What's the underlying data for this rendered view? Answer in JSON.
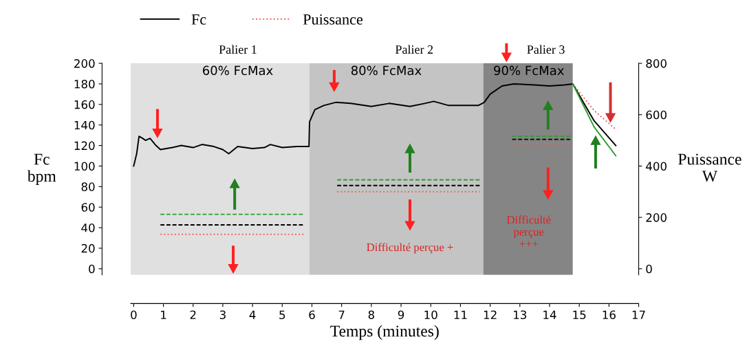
{
  "chart_data": {
    "type": "line",
    "xlabel": "Temps (minutes)",
    "ylabel": "Fc\nbpm",
    "y2label": "Puissance\nW",
    "xlim": [
      -0.1,
      17
    ],
    "xticks": [
      0,
      1,
      2,
      3,
      4,
      5,
      6,
      7,
      8,
      9,
      10,
      11,
      12,
      13,
      14,
      15,
      16,
      17
    ],
    "ylim": [
      -6,
      200
    ],
    "yticks": [
      0,
      20,
      40,
      60,
      80,
      100,
      120,
      140,
      160,
      180,
      200
    ],
    "y2lim": [
      -24,
      800
    ],
    "y2ticks": [
      0,
      200,
      400,
      600,
      800
    ],
    "grid": false,
    "legend": "top left",
    "marker": "none",
    "bands": [
      {
        "axis": "x",
        "from": -0.1,
        "to": 5.92,
        "label": "Palier 1",
        "color": "#e0e0e0"
      },
      {
        "axis": "x",
        "from": 5.92,
        "to": 11.77,
        "label": "Palier 2",
        "color": "#c4c4c4"
      },
      {
        "axis": "x",
        "from": 11.77,
        "to": 14.78,
        "label": "Palier 3",
        "color": "#858585"
      }
    ],
    "annotations": [
      "60% FcMax",
      "80% FcMax",
      "90% FcMax",
      "Difficulté perçue +",
      "Difficulté\nperçue\n+++"
    ],
    "series": [
      {
        "name": "Fc",
        "color": "#000000",
        "line_style": "solid",
        "axis": "y",
        "x": [
          0,
          0.1,
          0.18,
          0.3,
          0.4,
          0.55,
          0.75,
          0.9,
          1.3,
          1.6,
          2.0,
          2.3,
          2.7,
          3.0,
          3.2,
          3.5,
          4.0,
          4.4,
          4.6,
          5.0,
          5.5,
          5.9,
          5.92,
          6.1,
          6.4,
          6.8,
          7.3,
          8.0,
          8.6,
          9.3,
          9.8,
          10.1,
          10.6,
          11.2,
          11.6,
          11.8,
          12.0,
          12.4,
          12.8,
          13.5,
          14.0,
          14.5,
          14.78,
          15.5,
          16.23
        ],
        "values": [
          100,
          112,
          129,
          127,
          125,
          127,
          120,
          116,
          118,
          120,
          118,
          121,
          119,
          116,
          112,
          119,
          117,
          118,
          121,
          118,
          119,
          119,
          143,
          155,
          159,
          162,
          161,
          158,
          161,
          158,
          161,
          163,
          159,
          159,
          159,
          162,
          170,
          178,
          180,
          179,
          178,
          179,
          180,
          144,
          120
        ]
      },
      {
        "name": "Puissance",
        "color": "#f06060",
        "line_style": "dotted",
        "axis": "y2",
        "x": [
          0.9,
          5.74,
          5.8,
          6.85,
          11.65,
          11.7,
          12.74,
          14.75,
          14.76,
          14.78,
          15.5,
          16.23
        ],
        "values": [
          134,
          134,
          null,
          300,
          300,
          null,
          487,
          487,
          null,
          720,
          616,
          543
        ]
      },
      {
        "color": "#000000",
        "line_style": "dashed",
        "axis": "y2",
        "x": [
          0.9,
          5.74,
          5.8,
          6.85,
          11.65,
          11.7,
          12.74,
          14.75
        ],
        "values": [
          171,
          171,
          null,
          324,
          324,
          null,
          504,
          504
        ]
      },
      {
        "color": "#2e9e2e",
        "line_style": "dashed",
        "axis": "y2",
        "x": [
          0.9,
          5.74,
          5.8,
          6.85,
          11.65,
          11.7,
          12.74,
          14.75
        ],
        "values": [
          212,
          212,
          null,
          346,
          346,
          null,
          516,
          516
        ]
      },
      {
        "color": "#2e9e2e",
        "line_style": "solid",
        "axis": "y",
        "x": [
          14.78,
          15.5,
          16.23
        ],
        "values": [
          180,
          138,
          110
        ]
      }
    ]
  }
}
